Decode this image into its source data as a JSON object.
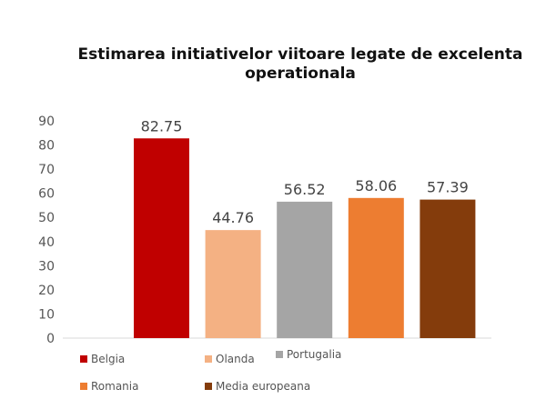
{
  "chart_data": {
    "type": "bar",
    "title": "Estimarea initiativelor viitoare legate de excelenta operationala",
    "categories": [
      "Belgia",
      "Olanda",
      "Portugalia",
      "Romania",
      "Media europeana"
    ],
    "values": [
      82.75,
      44.76,
      56.52,
      58.06,
      57.39
    ],
    "data_labels": [
      "82.75",
      "44.76",
      "56.52",
      "58.06",
      "57.39"
    ],
    "colors": [
      "#C00000",
      "#F4B183",
      "#A5A5A5",
      "#ED7D31",
      "#843C0C"
    ],
    "ylim": [
      0,
      90
    ],
    "yticks": [
      "0",
      "10",
      "20",
      "30",
      "40",
      "50",
      "60",
      "70",
      "80",
      "90"
    ],
    "xlabel": "",
    "ylabel": "",
    "grid": false,
    "legend": "bottom"
  }
}
